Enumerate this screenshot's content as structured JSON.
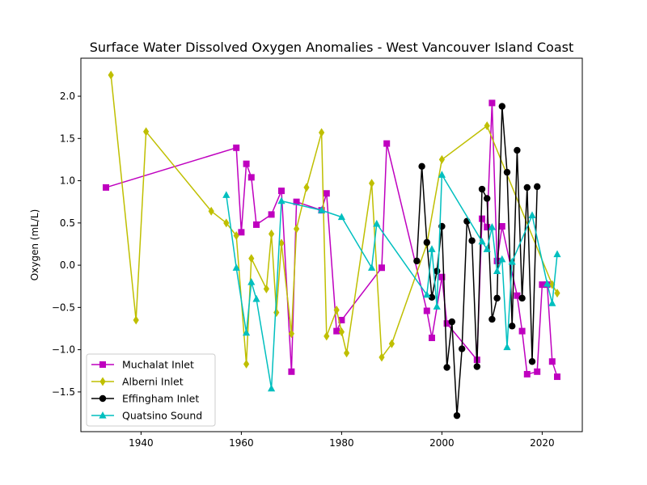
{
  "chart_data": {
    "type": "line",
    "title": "Surface Water Dissolved Oxygen Anomalies - West Vancouver Island Coast",
    "xlabel": "",
    "ylabel": "Oxygen (mL/L)",
    "xlim": [
      1928,
      2028
    ],
    "ylim": [
      -1.97,
      2.45
    ],
    "xticks": [
      1940,
      1960,
      1980,
      2000,
      2020
    ],
    "yticks": [
      -1.5,
      -1.0,
      -0.5,
      0.0,
      0.5,
      1.0,
      1.5,
      2.0
    ],
    "xtick_labels": [
      "1940",
      "1960",
      "1980",
      "2000",
      "2020"
    ],
    "ytick_labels": [
      "−1.5",
      "−1.0",
      "−0.5",
      "0.0",
      "0.5",
      "1.0",
      "1.5",
      "2.0"
    ],
    "grid": false,
    "legend_position": "lower-left",
    "series": [
      {
        "name": "Muchalat Inlet",
        "color": "#bf00bf",
        "marker": "square",
        "x": [
          1933,
          1959,
          1960,
          1961,
          1962,
          1963,
          1966,
          1968,
          1970,
          1971,
          1976,
          1977,
          1979,
          1980,
          1988,
          1989,
          1997,
          1998,
          2000,
          2001,
          2007,
          2008,
          2009,
          2010,
          2011,
          2012,
          2015,
          2016,
          2017,
          2019,
          2020,
          2021,
          2022,
          2023
        ],
        "y": [
          0.92,
          1.39,
          0.39,
          1.2,
          1.04,
          0.48,
          0.6,
          0.88,
          -1.26,
          0.75,
          0.65,
          0.85,
          -0.78,
          -0.65,
          -0.03,
          1.44,
          -0.54,
          -0.86,
          -0.14,
          -0.69,
          -1.12,
          0.55,
          0.45,
          1.92,
          0.05,
          0.46,
          -0.36,
          -0.78,
          -1.29,
          -1.26,
          -0.23,
          -0.23,
          -1.14,
          -1.32
        ]
      },
      {
        "name": "Alberni Inlet",
        "color": "#bfbf00",
        "marker": "diamond",
        "x": [
          1934,
          1939,
          1941,
          1954,
          1957,
          1959,
          1961,
          1962,
          1965,
          1966,
          1967,
          1968,
          1970,
          1971,
          1973,
          1976,
          1977,
          1979,
          1980,
          1981,
          1986,
          1988,
          1990,
          1997,
          2000,
          2009,
          2022,
          2023
        ],
        "y": [
          2.25,
          -0.65,
          1.58,
          0.64,
          0.5,
          0.35,
          -1.17,
          0.08,
          -0.28,
          0.37,
          -0.56,
          0.26,
          -0.81,
          0.43,
          0.92,
          1.57,
          -0.84,
          -0.53,
          -0.79,
          -1.04,
          0.97,
          -1.09,
          -0.93,
          0.25,
          1.25,
          1.65,
          -0.23,
          -0.33
        ]
      },
      {
        "name": "Effingham Inlet",
        "color": "#000000",
        "marker": "circle",
        "x": [
          1995,
          1996,
          1997,
          1998,
          1999,
          2000,
          2001,
          2002,
          2003,
          2004,
          2005,
          2006,
          2007,
          2008,
          2009,
          2010,
          2011,
          2012,
          2013,
          2014,
          2015,
          2016,
          2017,
          2018,
          2019
        ],
        "y": [
          0.05,
          1.17,
          0.27,
          -0.38,
          -0.07,
          0.46,
          -1.21,
          -0.67,
          -1.78,
          -0.99,
          0.52,
          0.29,
          -1.2,
          0.9,
          0.79,
          -0.64,
          -0.39,
          1.88,
          1.1,
          -0.72,
          1.36,
          -0.39,
          0.92,
          -1.14,
          0.93
        ]
      },
      {
        "name": "Quatsino Sound",
        "color": "#00bfbf",
        "marker": "triangle",
        "x": [
          1957,
          1959,
          1961,
          1962,
          1963,
          1966,
          1968,
          1976,
          1980,
          1986,
          1987,
          1997,
          1998,
          1999,
          2000,
          2008,
          2009,
          2010,
          2011,
          2012,
          2013,
          2014,
          2018,
          2021,
          2022,
          2023
        ],
        "y": [
          0.83,
          -0.03,
          -0.8,
          -0.2,
          -0.4,
          -1.46,
          0.76,
          0.65,
          0.57,
          -0.03,
          0.49,
          -0.35,
          0.19,
          -0.49,
          1.07,
          0.28,
          0.19,
          0.45,
          -0.07,
          0.07,
          -0.97,
          0.04,
          0.59,
          -0.22,
          -0.45,
          0.13
        ]
      }
    ]
  }
}
